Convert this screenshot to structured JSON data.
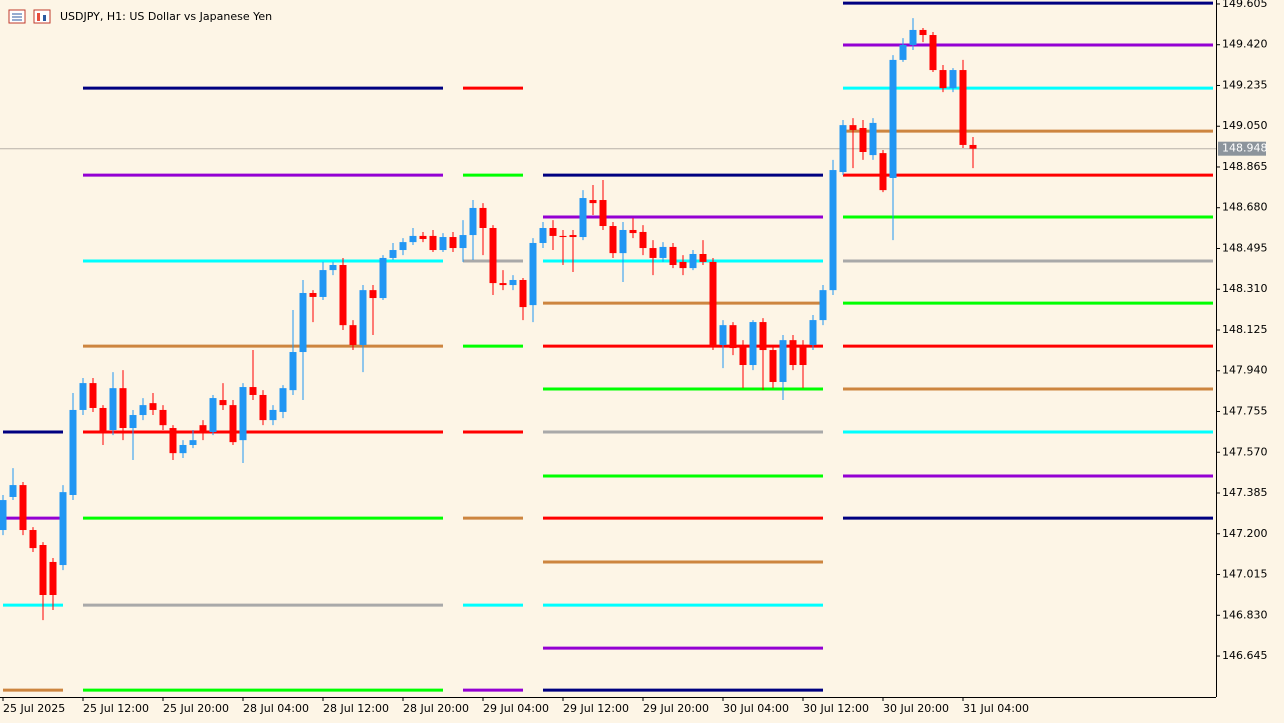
{
  "chart_data": {
    "type": "candlestick",
    "title": "USDJPY, H1:  US Dollar vs Japanese Yen",
    "categories": [
      "25 Jul 2025",
      null,
      null,
      null,
      null,
      null,
      null,
      null,
      "25 Jul 12:00",
      null,
      null,
      null,
      null,
      null,
      null,
      null,
      "25 Jul 20:00",
      null,
      null,
      null,
      null,
      null,
      null,
      null,
      "28 Jul 04:00",
      null,
      null,
      null,
      null,
      null,
      null,
      null,
      "28 Jul 12:00",
      null,
      null,
      null,
      null,
      null,
      null,
      null,
      "28 Jul 20:00",
      null,
      null,
      null,
      null,
      null,
      null,
      null,
      "29 Jul 04:00",
      null,
      null,
      null,
      null,
      null,
      null,
      null,
      "29 Jul 12:00",
      null,
      null,
      null,
      null,
      null,
      null,
      null,
      "29 Jul 20:00",
      null,
      null,
      null,
      null,
      null,
      null,
      null,
      "30 Jul 04:00",
      null,
      null,
      null,
      null,
      null,
      null,
      null,
      "30 Jul 12:00",
      null,
      null,
      null,
      null,
      null,
      null,
      null,
      "30 Jul 20:00",
      null,
      null,
      null,
      null,
      null,
      null,
      null,
      "31 Jul 04:00",
      null
    ],
    "open": [
      147.217,
      147.367,
      147.421,
      147.217,
      147.149,
      147.072,
      147.058,
      147.376,
      147.762,
      147.884,
      147.771,
      147.671,
      147.861,
      147.68,
      147.739,
      147.793,
      147.762,
      147.68,
      147.566,
      147.603,
      147.693,
      147.662,
      147.807,
      147.784,
      147.625,
      147.866,
      147.83,
      147.716,
      147.753,
      147.852,
      148.025,
      148.293,
      148.275,
      148.397,
      148.42,
      148.147,
      148.057,
      148.306,
      148.27,
      148.452,
      148.488,
      148.524,
      148.552,
      148.552,
      148.488,
      148.547,
      148.497,
      148.556,
      148.679,
      148.588,
      148.338,
      148.329,
      148.352,
      148.238,
      148.52,
      148.588,
      148.552,
      148.556,
      148.547,
      148.715,
      148.715,
      148.597,
      148.474,
      148.579,
      148.57,
      148.497,
      148.452,
      148.502,
      148.434,
      148.406,
      148.47,
      148.434,
      148.057,
      148.147,
      148.057,
      147.966,
      148.161,
      148.034,
      147.889,
      148.079,
      148.057,
      148.057,
      148.17,
      148.306,
      148.842,
      149.055,
      149.042,
      148.919,
      148.928,
      148.815,
      149.351,
      149.419,
      149.487,
      149.464,
      149.305,
      149.223,
      149.305,
      148.965
    ],
    "high": [
      147.376,
      147.498,
      147.435,
      147.23,
      147.162,
      147.09,
      147.421,
      147.839,
      147.907,
      147.907,
      147.784,
      147.934,
      147.943,
      147.762,
      147.816,
      147.839,
      147.784,
      147.693,
      147.625,
      147.671,
      147.716,
      147.83,
      147.884,
      147.807,
      147.884,
      148.034,
      147.852,
      147.784,
      147.875,
      148.216,
      148.352,
      148.306,
      148.434,
      148.434,
      148.452,
      148.17,
      148.329,
      148.329,
      148.465,
      148.52,
      148.542,
      148.588,
      148.57,
      148.579,
      148.565,
      148.57,
      148.624,
      148.715,
      148.701,
      148.601,
      148.397,
      148.374,
      148.361,
      148.542,
      148.615,
      148.624,
      148.579,
      148.579,
      148.76,
      148.783,
      148.806,
      148.615,
      148.615,
      148.633,
      148.601,
      148.533,
      148.524,
      148.52,
      148.465,
      148.488,
      148.533,
      148.452,
      148.17,
      148.161,
      148.079,
      148.17,
      148.179,
      148.057,
      148.102,
      148.102,
      148.079,
      148.193,
      148.329,
      148.897,
      149.078,
      149.087,
      149.078,
      149.087,
      148.942,
      149.373,
      149.45,
      149.541,
      149.496,
      149.478,
      149.328,
      149.314,
      149.351,
      149.001
    ],
    "low": [
      147.194,
      147.353,
      147.194,
      147.117,
      146.808,
      146.854,
      147.035,
      147.353,
      147.739,
      147.753,
      147.603,
      147.648,
      147.625,
      147.535,
      147.716,
      147.739,
      147.671,
      147.535,
      147.544,
      147.589,
      147.625,
      147.648,
      147.762,
      147.603,
      147.521,
      147.807,
      147.693,
      147.693,
      147.725,
      147.83,
      147.807,
      148.161,
      148.261,
      148.374,
      148.125,
      148.034,
      147.934,
      148.102,
      148.261,
      148.443,
      148.465,
      148.511,
      148.524,
      148.479,
      148.479,
      148.479,
      148.434,
      148.443,
      148.465,
      148.284,
      148.306,
      148.306,
      148.17,
      148.161,
      148.497,
      148.488,
      148.42,
      148.388,
      148.533,
      148.647,
      148.579,
      148.452,
      148.343,
      148.542,
      148.465,
      148.374,
      148.434,
      148.406,
      148.374,
      148.397,
      148.42,
      148.034,
      147.952,
      148.011,
      147.861,
      147.943,
      147.852,
      147.861,
      147.807,
      147.943,
      147.861,
      148.034,
      148.147,
      148.284,
      148.828,
      148.86,
      148.897,
      148.897,
      148.751,
      148.533,
      149.342,
      149.396,
      149.432,
      149.296,
      149.205,
      149.205,
      148.951,
      148.86
    ],
    "close": [
      147.353,
      147.421,
      147.217,
      147.135,
      146.922,
      146.922,
      147.389,
      147.762,
      147.884,
      147.771,
      147.662,
      147.861,
      147.68,
      147.739,
      147.784,
      147.762,
      147.693,
      147.566,
      147.603,
      147.625,
      147.662,
      147.816,
      147.784,
      147.616,
      147.866,
      147.83,
      147.716,
      147.762,
      147.861,
      148.025,
      148.293,
      148.275,
      148.397,
      148.42,
      148.147,
      148.057,
      148.306,
      148.27,
      148.452,
      148.488,
      148.524,
      148.552,
      148.538,
      148.488,
      148.547,
      148.497,
      148.556,
      148.679,
      148.588,
      148.338,
      148.329,
      148.352,
      148.229,
      148.52,
      148.588,
      148.552,
      148.547,
      148.547,
      148.724,
      148.701,
      148.597,
      148.474,
      148.579,
      148.565,
      148.497,
      148.452,
      148.502,
      148.42,
      148.406,
      148.47,
      148.434,
      148.057,
      148.147,
      148.043,
      147.966,
      148.161,
      148.034,
      147.889,
      148.079,
      147.966,
      147.966,
      148.17,
      148.306,
      148.851,
      149.055,
      149.033,
      148.933,
      149.065,
      148.76,
      149.351,
      149.419,
      149.487,
      149.464,
      149.305,
      149.223,
      149.305,
      148.965,
      148.948
    ],
    "up_color": "#2196f3",
    "down_color": "#ff0000",
    "last_price": 148.948,
    "ylim": [
      146.459,
      149.623
    ],
    "yticks": [
      149.605,
      {
        "value": 149.42,
        "label": "149.420"
      },
      149.235,
      {
        "value": 149.05,
        "label": "149.050"
      },
      148.865,
      {
        "value": 148.68,
        "label": "148.680"
      },
      148.495,
      {
        "value": 148.31,
        "label": "148.310"
      },
      148.125,
      {
        "value": 147.94,
        "label": "147.940"
      },
      147.755,
      {
        "value": 147.57,
        "label": "147.570"
      },
      147.385,
      {
        "value": 147.2,
        "label": "147.200"
      },
      147.015,
      {
        "value": 146.83,
        "label": "146.830"
      },
      146.645
    ],
    "levels": [
      {
        "start": 0,
        "end": 6,
        "lines": [
          {
            "value": 147.662,
            "color": "#000080"
          },
          {
            "value": 147.271,
            "color": "#9400d3"
          },
          {
            "value": 146.876,
            "color": "#00ffff"
          },
          {
            "value": 146.49,
            "color": "#cd853f"
          }
        ]
      },
      {
        "start": 8,
        "end": 44,
        "lines": [
          {
            "value": 149.223,
            "color": "#000080"
          },
          {
            "value": 148.828,
            "color": "#9400d3"
          },
          {
            "value": 148.438,
            "color": "#00ffff"
          },
          {
            "value": 148.052,
            "color": "#cd853f"
          },
          {
            "value": 147.662,
            "color": "#ff0000"
          },
          {
            "value": 147.271,
            "color": "#00ff00"
          },
          {
            "value": 146.876,
            "color": "#a9a9a9"
          },
          {
            "value": 146.49,
            "color": "#00ff00"
          }
        ]
      },
      {
        "start": 46,
        "end": 52,
        "lines": [
          {
            "value": 149.223,
            "color": "#ff0000"
          },
          {
            "value": 148.828,
            "color": "#00ff00"
          },
          {
            "value": 148.438,
            "color": "#a9a9a9"
          },
          {
            "value": 148.052,
            "color": "#00ff00"
          },
          {
            "value": 147.662,
            "color": "#ff0000"
          },
          {
            "value": 147.271,
            "color": "#cd853f"
          },
          {
            "value": 146.876,
            "color": "#00ffff"
          },
          {
            "value": 146.49,
            "color": "#9400d3"
          }
        ]
      },
      {
        "start": 54,
        "end": 82,
        "lines": [
          {
            "value": 148.828,
            "color": "#000080"
          },
          {
            "value": 148.638,
            "color": "#9400d3"
          },
          {
            "value": 148.438,
            "color": "#00ffff"
          },
          {
            "value": 148.247,
            "color": "#cd853f"
          },
          {
            "value": 148.052,
            "color": "#ff0000"
          },
          {
            "value": 147.857,
            "color": "#00ff00"
          },
          {
            "value": 147.662,
            "color": "#a9a9a9"
          },
          {
            "value": 147.462,
            "color": "#00ff00"
          },
          {
            "value": 147.271,
            "color": "#ff0000"
          },
          {
            "value": 147.072,
            "color": "#cd853f"
          },
          {
            "value": 146.876,
            "color": "#00ffff"
          },
          {
            "value": 146.681,
            "color": "#9400d3"
          },
          {
            "value": 146.49,
            "color": "#000080"
          }
        ]
      },
      {
        "start": 84,
        "end": 121,
        "lines": [
          {
            "value": 149.609,
            "color": "#000080"
          },
          {
            "value": 149.419,
            "color": "#9400d3"
          },
          {
            "value": 149.223,
            "color": "#00ffff"
          },
          {
            "value": 149.028,
            "color": "#cd853f"
          },
          {
            "value": 148.828,
            "color": "#ff0000"
          },
          {
            "value": 148.638,
            "color": "#00ff00"
          },
          {
            "value": 148.438,
            "color": "#a9a9a9"
          },
          {
            "value": 148.247,
            "color": "#00ff00"
          },
          {
            "value": 148.052,
            "color": "#ff0000"
          },
          {
            "value": 147.857,
            "color": "#cd853f"
          },
          {
            "value": 147.662,
            "color": "#00ffff"
          },
          {
            "value": 147.462,
            "color": "#9400d3"
          },
          {
            "value": 147.271,
            "color": "#000080"
          }
        ]
      }
    ]
  }
}
